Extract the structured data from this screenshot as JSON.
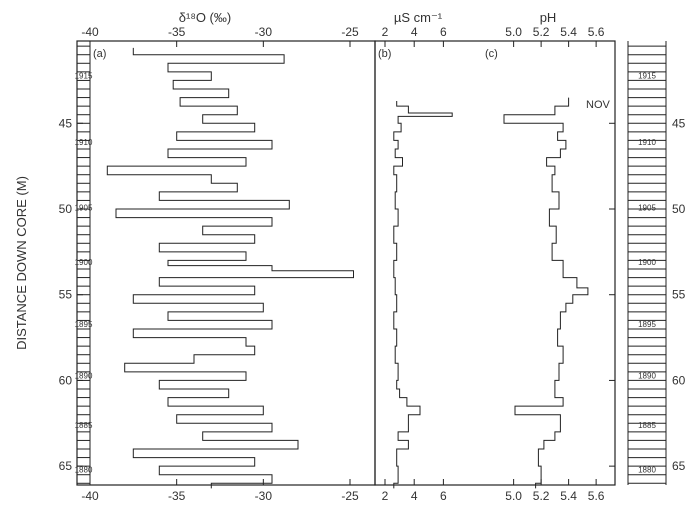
{
  "chart_data": [
    {
      "panel_label": "(a)",
      "type": "line",
      "xlabel": "δ¹⁸O (‰)",
      "xlim": [
        -40,
        -25
      ],
      "xticks": [
        "-40",
        "-35",
        "-30",
        "-25"
      ],
      "ylabel": "DISTANCE DOWN CORE (M)",
      "ylim": [
        40.2,
        66.1
      ],
      "yticks": [
        "45",
        "50",
        "55",
        "60",
        "65"
      ],
      "year_labels": [
        "1915",
        "1910",
        "1905",
        "1900",
        "1895",
        "1890",
        "1885",
        "1880"
      ],
      "year_depths": [
        42.2,
        46.1,
        49.9,
        53.1,
        56.7,
        59.7,
        62.6,
        65.2
      ],
      "series": [
        {
          "depth": [
            40.6,
            41.0,
            41.5,
            42.0,
            42.5,
            43.0,
            43.5,
            44.0,
            44.5,
            45.0,
            45.5,
            46.0,
            46.5,
            47.0,
            47.5,
            48.0,
            48.5,
            49.0,
            49.5,
            50.0,
            50.5,
            51.0,
            51.5,
            52.0,
            52.5,
            53.0,
            53.3,
            53.6,
            54.0,
            54.5,
            55.0,
            55.5,
            56.0,
            56.5,
            57.0,
            57.5,
            58.0,
            58.5,
            59.0,
            59.5,
            60.0,
            60.5,
            61.0,
            61.5,
            62.0,
            62.5,
            63.0,
            63.5,
            64.0,
            64.5,
            65.0,
            65.5,
            66.0
          ],
          "d18O": [
            -37.5,
            -28.8,
            -35.5,
            -33.0,
            -35.2,
            -32.0,
            -34.8,
            -31.5,
            -33.5,
            -30.5,
            -35.0,
            -29.5,
            -35.5,
            -31.0,
            -39.0,
            -33.0,
            -31.5,
            -36.0,
            -28.5,
            -38.5,
            -29.5,
            -33.5,
            -30.5,
            -36.0,
            -31.0,
            -35.5,
            -29.5,
            -24.8,
            -36.0,
            -30.5,
            -37.5,
            -30.0,
            -35.5,
            -29.5,
            -37.5,
            -31.0,
            -30.5,
            -34.0,
            -38.0,
            -31.0,
            -36.0,
            -32.0,
            -35.5,
            -30.0,
            -35.0,
            -29.5,
            -33.5,
            -28.0,
            -37.5,
            -30.5,
            -36.0,
            -29.5,
            -33.0
          ]
        }
      ]
    },
    {
      "panel_label": "(b)",
      "type": "line",
      "xlabel": "µS cm⁻¹",
      "xlim": [
        2,
        7
      ],
      "xticks": [
        "2",
        "4",
        "6"
      ],
      "series": [
        {
          "depth": [
            43.7,
            44.0,
            44.4,
            44.6,
            45.0,
            45.5,
            46.0,
            46.5,
            47.0,
            47.5,
            48.0,
            49.0,
            50.0,
            51.0,
            52.0,
            53.0,
            54.0,
            55.0,
            56.0,
            57.0,
            58.0,
            59.0,
            60.0,
            60.5,
            61.0,
            61.5,
            62.0,
            63.0,
            63.5,
            64.0,
            65.0,
            66.0
          ],
          "conductivity": [
            2.8,
            3.6,
            6.6,
            2.9,
            3.1,
            2.6,
            2.9,
            2.7,
            3.2,
            2.6,
            2.8,
            2.7,
            2.9,
            2.6,
            2.8,
            2.6,
            2.7,
            2.8,
            2.6,
            2.8,
            2.7,
            2.9,
            2.8,
            3.0,
            3.5,
            4.4,
            3.6,
            2.9,
            3.6,
            2.8,
            2.9,
            2.6
          ]
        }
      ]
    },
    {
      "panel_label": "(c)",
      "type": "line",
      "xlabel": "pH",
      "xlim": [
        4.85,
        5.65
      ],
      "xticks": [
        "5.0",
        "5.2",
        "5.4",
        "5.6"
      ],
      "annotations": [
        "NOV"
      ],
      "series": [
        {
          "depth": [
            43.5,
            44.0,
            44.5,
            45.0,
            45.5,
            46.0,
            46.5,
            47.0,
            47.5,
            48.0,
            49.0,
            50.0,
            51.0,
            52.0,
            53.0,
            54.0,
            54.6,
            55.0,
            55.5,
            56.0,
            57.0,
            58.0,
            59.0,
            60.0,
            61.0,
            61.5,
            62.0,
            63.0,
            63.5,
            64.0,
            65.0,
            66.0
          ],
          "ph": [
            5.4,
            5.3,
            4.93,
            5.36,
            5.32,
            5.38,
            5.34,
            5.24,
            5.3,
            5.28,
            5.33,
            5.26,
            5.31,
            5.28,
            5.36,
            5.46,
            5.54,
            5.43,
            5.38,
            5.34,
            5.32,
            5.36,
            5.33,
            5.3,
            5.36,
            5.01,
            5.34,
            5.3,
            5.22,
            5.18,
            5.2,
            5.16
          ]
        }
      ]
    }
  ]
}
